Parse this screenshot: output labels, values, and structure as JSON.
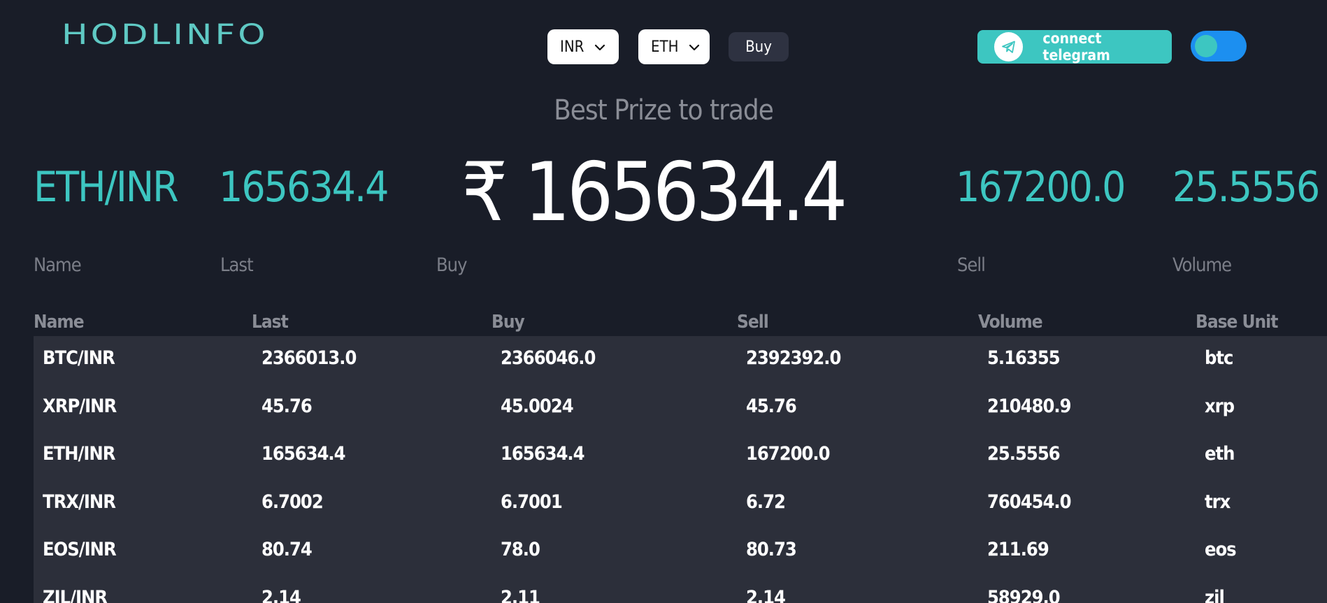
{
  "header": {
    "logo": "HODLINFO",
    "currency_select": "INR",
    "crypto_select": "ETH",
    "buy_label": "Buy",
    "telegram_label": "connect telegram"
  },
  "subtitle": "Best Prize to trade",
  "summary": {
    "name": "ETH/INR",
    "last": "165634.4",
    "buy_price": "₹ 165634.4",
    "sell": "167200.0",
    "volume": "25.5556",
    "labels": {
      "name": "Name",
      "last": "Last",
      "buy": "Buy",
      "sell": "Sell",
      "volume": "Volume"
    }
  },
  "table": {
    "headers": {
      "name": "Name",
      "last": "Last",
      "buy": "Buy",
      "sell": "Sell",
      "volume": "Volume",
      "base_unit": "Base Unit"
    },
    "rows": [
      {
        "name": "BTC/INR",
        "last": "2366013.0",
        "buy": "2366046.0",
        "sell": "2392392.0",
        "volume": "5.16355",
        "base_unit": "btc"
      },
      {
        "name": "XRP/INR",
        "last": "45.76",
        "buy": "45.0024",
        "sell": "45.76",
        "volume": "210480.9",
        "base_unit": "xrp"
      },
      {
        "name": "ETH/INR",
        "last": "165634.4",
        "buy": "165634.4",
        "sell": "167200.0",
        "volume": "25.5556",
        "base_unit": "eth"
      },
      {
        "name": "TRX/INR",
        "last": "6.7002",
        "buy": "6.7001",
        "sell": "6.72",
        "volume": "760454.0",
        "base_unit": "trx"
      },
      {
        "name": "EOS/INR",
        "last": "80.74",
        "buy": "78.0",
        "sell": "80.73",
        "volume": "211.69",
        "base_unit": "eos"
      },
      {
        "name": "ZIL/INR",
        "last": "2.14",
        "buy": "2.11",
        "sell": "2.14",
        "volume": "58929.0",
        "base_unit": "zil"
      }
    ]
  },
  "colors": {
    "background": "#191d28",
    "accent": "#3dc6c1",
    "table_bg": "#2c2f3a",
    "toggle": "#1c8ff0",
    "muted_text": "#8a8d96"
  },
  "icons": {
    "telegram": "telegram-icon",
    "chevron": "chevron-down-icon"
  }
}
